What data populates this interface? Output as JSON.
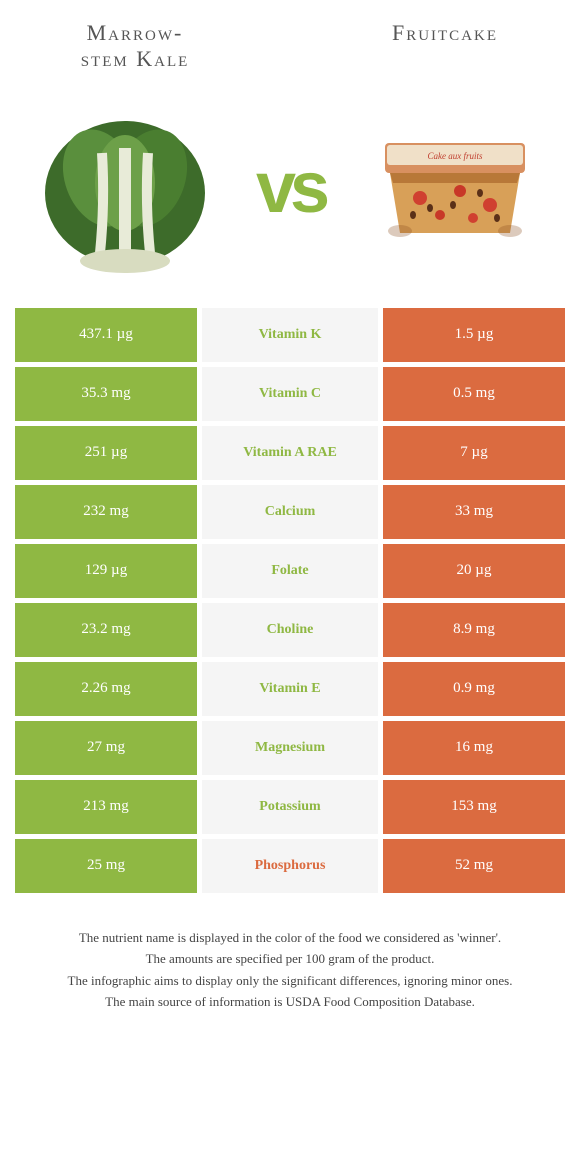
{
  "header": {
    "left_title_line1": "Marrow-",
    "left_title_line2": "stem Kale",
    "right_title": "Fruitcake",
    "vs": "vs"
  },
  "colors": {
    "left": "#8fb843",
    "right": "#db6b40",
    "mid_bg": "#f5f5f5",
    "vs": "#8fb843"
  },
  "rows": [
    {
      "left": "437.1 µg",
      "label": "Vitamin K",
      "right": "1.5 µg",
      "winner": "left"
    },
    {
      "left": "35.3 mg",
      "label": "Vitamin C",
      "right": "0.5 mg",
      "winner": "left"
    },
    {
      "left": "251 µg",
      "label": "Vitamin A RAE",
      "right": "7 µg",
      "winner": "left"
    },
    {
      "left": "232 mg",
      "label": "Calcium",
      "right": "33 mg",
      "winner": "left"
    },
    {
      "left": "129 µg",
      "label": "Folate",
      "right": "20 µg",
      "winner": "left"
    },
    {
      "left": "23.2 mg",
      "label": "Choline",
      "right": "8.9 mg",
      "winner": "left"
    },
    {
      "left": "2.26 mg",
      "label": "Vitamin E",
      "right": "0.9 mg",
      "winner": "left"
    },
    {
      "left": "27 mg",
      "label": "Magnesium",
      "right": "16 mg",
      "winner": "left"
    },
    {
      "left": "213 mg",
      "label": "Potassium",
      "right": "153 mg",
      "winner": "left"
    },
    {
      "left": "25 mg",
      "label": "Phosphorus",
      "right": "52 mg",
      "winner": "right"
    }
  ],
  "footer": {
    "line1": "The nutrient name is displayed in the color of the food we considered as 'winner'.",
    "line2": "The amounts are specified per 100 gram of the product.",
    "line3": "The infographic aims to display only the significant differences, ignoring minor ones.",
    "line4": "The main source of information is USDA Food Composition Database."
  }
}
